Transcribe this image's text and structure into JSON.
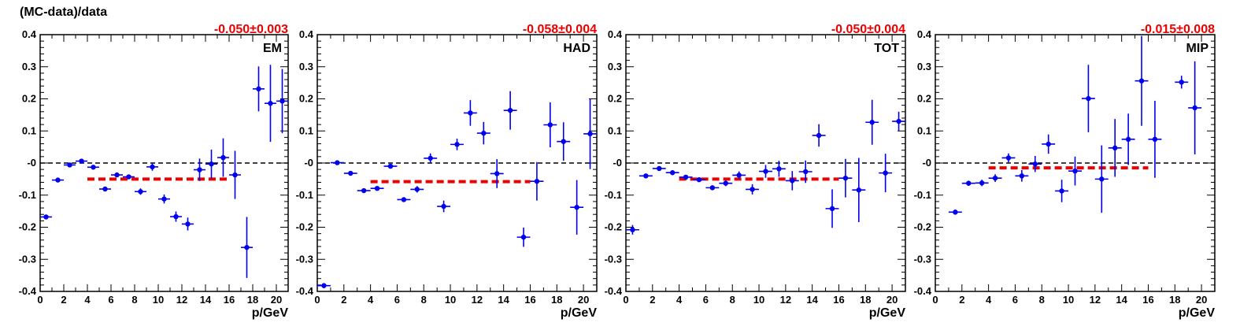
{
  "figure": {
    "ylabel": "(MC-data)/data"
  },
  "chart_data": [
    {
      "type": "scatter",
      "label": "EM",
      "fit_label": "-0.050±0.003",
      "fit": {
        "value": -0.05,
        "x_range": [
          4,
          16
        ]
      },
      "xlabel": "p/GeV",
      "xlim": [
        0,
        21
      ],
      "ylim": [
        -0.4,
        0.4
      ],
      "xticks": [
        "0",
        "2",
        "4",
        "6",
        "8",
        "10",
        "12",
        "14",
        "16",
        "18",
        "20"
      ],
      "yticks": [
        "-0.4",
        "-0.3",
        "-0.2",
        "-0.1",
        "-0",
        "0.1",
        "0.2",
        "0.3",
        "0.4"
      ],
      "reference_line": 0,
      "points": [
        {
          "x": 0.5,
          "y": -0.168,
          "err": 0.006
        },
        {
          "x": 1.5,
          "y": -0.053,
          "err": 0.005
        },
        {
          "x": 2.5,
          "y": -0.006,
          "err": 0.004
        },
        {
          "x": 3.5,
          "y": 0.006,
          "err": 0.004
        },
        {
          "x": 4.5,
          "y": -0.013,
          "err": 0.005
        },
        {
          "x": 5.5,
          "y": -0.081,
          "err": 0.005
        },
        {
          "x": 6.5,
          "y": -0.037,
          "err": 0.006
        },
        {
          "x": 7.5,
          "y": -0.043,
          "err": 0.007
        },
        {
          "x": 8.5,
          "y": -0.089,
          "err": 0.01
        },
        {
          "x": 9.5,
          "y": -0.012,
          "err": 0.012
        },
        {
          "x": 10.5,
          "y": -0.112,
          "err": 0.014
        },
        {
          "x": 11.5,
          "y": -0.167,
          "err": 0.016
        },
        {
          "x": 12.5,
          "y": -0.19,
          "err": 0.02
        },
        {
          "x": 13.5,
          "y": -0.021,
          "err": 0.035
        },
        {
          "x": 14.5,
          "y": -0.003,
          "err": 0.045
        },
        {
          "x": 15.5,
          "y": 0.017,
          "err": 0.06
        },
        {
          "x": 16.5,
          "y": -0.037,
          "err": 0.075
        },
        {
          "x": 17.5,
          "y": -0.263,
          "err": 0.095
        },
        {
          "x": 18.5,
          "y": 0.231,
          "err": 0.07
        },
        {
          "x": 19.5,
          "y": 0.186,
          "err": 0.12
        },
        {
          "x": 20.5,
          "y": 0.193,
          "err": 0.1
        }
      ]
    },
    {
      "type": "scatter",
      "label": "HAD",
      "fit_label": "-0.058±0.004",
      "fit": {
        "value": -0.058,
        "x_range": [
          4,
          16
        ]
      },
      "xlabel": "p/GeV",
      "xlim": [
        0,
        21
      ],
      "ylim": [
        -0.4,
        0.4
      ],
      "xticks": [
        "0",
        "2",
        "4",
        "6",
        "8",
        "10",
        "12",
        "14",
        "16",
        "18",
        "20"
      ],
      "yticks": [
        "-0.4",
        "-0.3",
        "-0.2",
        "-0.1",
        "-0",
        "0.1",
        "0.2",
        "0.3",
        "0.4"
      ],
      "reference_line": 0,
      "points": [
        {
          "x": 0.5,
          "y": -0.382,
          "err": 0.008
        },
        {
          "x": 1.5,
          "y": 0.001,
          "err": 0.004
        },
        {
          "x": 2.5,
          "y": -0.032,
          "err": 0.004
        },
        {
          "x": 3.5,
          "y": -0.086,
          "err": 0.005
        },
        {
          "x": 4.5,
          "y": -0.079,
          "err": 0.006
        },
        {
          "x": 5.5,
          "y": -0.01,
          "err": 0.006
        },
        {
          "x": 6.5,
          "y": -0.114,
          "err": 0.007
        },
        {
          "x": 7.5,
          "y": -0.082,
          "err": 0.01
        },
        {
          "x": 8.5,
          "y": 0.015,
          "err": 0.015
        },
        {
          "x": 9.5,
          "y": -0.135,
          "err": 0.018
        },
        {
          "x": 10.5,
          "y": 0.058,
          "err": 0.018
        },
        {
          "x": 11.5,
          "y": 0.156,
          "err": 0.04
        },
        {
          "x": 12.5,
          "y": 0.093,
          "err": 0.035
        },
        {
          "x": 13.5,
          "y": -0.033,
          "err": 0.045
        },
        {
          "x": 14.5,
          "y": 0.164,
          "err": 0.06
        },
        {
          "x": 15.5,
          "y": -0.231,
          "err": 0.03
        },
        {
          "x": 16.5,
          "y": -0.057,
          "err": 0.06
        },
        {
          "x": 17.5,
          "y": 0.119,
          "err": 0.07
        },
        {
          "x": 18.5,
          "y": 0.067,
          "err": 0.06
        },
        {
          "x": 19.5,
          "y": -0.138,
          "err": 0.085
        },
        {
          "x": 20.5,
          "y": 0.091,
          "err": 0.11
        }
      ]
    },
    {
      "type": "scatter",
      "label": "TOT",
      "fit_label": "-0.050±0.004",
      "fit": {
        "value": -0.05,
        "x_range": [
          4,
          16
        ]
      },
      "xlabel": "p/GeV",
      "xlim": [
        0,
        21
      ],
      "ylim": [
        -0.4,
        0.4
      ],
      "xticks": [
        "0",
        "2",
        "4",
        "6",
        "8",
        "10",
        "12",
        "14",
        "16",
        "18",
        "20"
      ],
      "yticks": [
        "-0.4",
        "-0.3",
        "-0.2",
        "-0.1",
        "-0",
        "0.1",
        "0.2",
        "0.3",
        "0.4"
      ],
      "reference_line": 0,
      "points": [
        {
          "x": 0.5,
          "y": -0.208,
          "err": 0.015
        },
        {
          "x": 1.5,
          "y": -0.04,
          "err": 0.006
        },
        {
          "x": 2.5,
          "y": -0.017,
          "err": 0.005
        },
        {
          "x": 3.5,
          "y": -0.03,
          "err": 0.005
        },
        {
          "x": 4.5,
          "y": -0.044,
          "err": 0.005
        },
        {
          "x": 5.5,
          "y": -0.052,
          "err": 0.006
        },
        {
          "x": 6.5,
          "y": -0.077,
          "err": 0.007
        },
        {
          "x": 7.5,
          "y": -0.063,
          "err": 0.009
        },
        {
          "x": 8.5,
          "y": -0.038,
          "err": 0.012
        },
        {
          "x": 9.5,
          "y": -0.082,
          "err": 0.016
        },
        {
          "x": 10.5,
          "y": -0.026,
          "err": 0.02
        },
        {
          "x": 11.5,
          "y": -0.018,
          "err": 0.025
        },
        {
          "x": 12.5,
          "y": -0.055,
          "err": 0.03
        },
        {
          "x": 13.5,
          "y": -0.027,
          "err": 0.035
        },
        {
          "x": 14.5,
          "y": 0.086,
          "err": 0.035
        },
        {
          "x": 15.5,
          "y": -0.142,
          "err": 0.06
        },
        {
          "x": 16.5,
          "y": -0.047,
          "err": 0.06
        },
        {
          "x": 17.5,
          "y": -0.084,
          "err": 0.1
        },
        {
          "x": 18.5,
          "y": 0.127,
          "err": 0.07
        },
        {
          "x": 19.5,
          "y": -0.031,
          "err": 0.06
        },
        {
          "x": 20.5,
          "y": 0.13,
          "err": 0.03
        }
      ]
    },
    {
      "type": "scatter",
      "label": "MIP",
      "fit_label": "-0.015±0.008",
      "fit": {
        "value": -0.015,
        "x_range": [
          4,
          16
        ]
      },
      "xlabel": "p/GeV",
      "xlim": [
        0,
        21
      ],
      "ylim": [
        -0.4,
        0.4
      ],
      "xticks": [
        "0",
        "2",
        "4",
        "6",
        "8",
        "10",
        "12",
        "14",
        "16",
        "18",
        "20"
      ],
      "yticks": [
        "-0.4",
        "-0.3",
        "-0.2",
        "-0.1",
        "-0",
        "0.1",
        "0.2",
        "0.3",
        "0.4"
      ],
      "reference_line": 0,
      "points": [
        {
          "x": 1.5,
          "y": -0.153,
          "err": 0.008
        },
        {
          "x": 2.5,
          "y": -0.063,
          "err": 0.008
        },
        {
          "x": 3.5,
          "y": -0.062,
          "err": 0.01
        },
        {
          "x": 4.5,
          "y": -0.047,
          "err": 0.012
        },
        {
          "x": 5.5,
          "y": 0.016,
          "err": 0.014
        },
        {
          "x": 6.5,
          "y": -0.04,
          "err": 0.018
        },
        {
          "x": 7.5,
          "y": -0.003,
          "err": 0.025
        },
        {
          "x": 8.5,
          "y": 0.059,
          "err": 0.03
        },
        {
          "x": 9.5,
          "y": -0.087,
          "err": 0.035
        },
        {
          "x": 10.5,
          "y": -0.025,
          "err": 0.045
        },
        {
          "x": 11.5,
          "y": 0.201,
          "err": 0.105
        },
        {
          "x": 12.5,
          "y": -0.05,
          "err": 0.105
        },
        {
          "x": 13.5,
          "y": 0.047,
          "err": 0.09
        },
        {
          "x": 14.5,
          "y": 0.074,
          "err": 0.08
        },
        {
          "x": 15.5,
          "y": 0.256,
          "err": 0.14
        },
        {
          "x": 16.5,
          "y": 0.074,
          "err": 0.12
        },
        {
          "x": 18.5,
          "y": 0.252,
          "err": 0.02
        },
        {
          "x": 19.5,
          "y": 0.172,
          "err": 0.145
        }
      ]
    }
  ],
  "colors": {
    "marker": "#0000ee",
    "fit": "#ee0000",
    "fit_label": "#ee0000",
    "axis": "#000000"
  }
}
